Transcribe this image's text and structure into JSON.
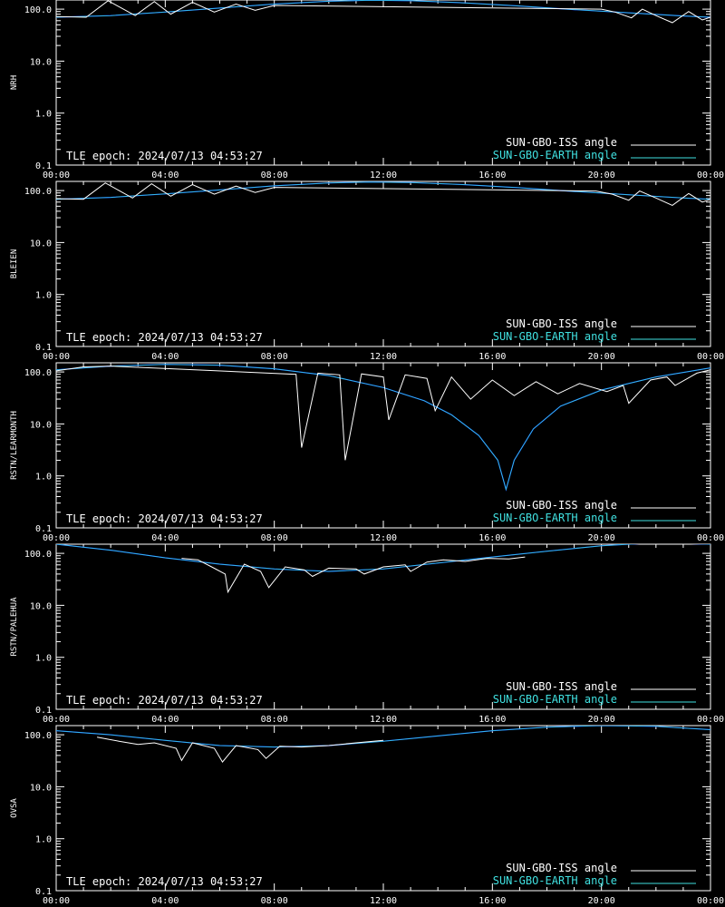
{
  "page": {
    "background": "#000000",
    "foreground": "#ffffff"
  },
  "colors": {
    "iss": "#ffffff",
    "iss_shadow": "#808080",
    "earth": "#40e0e0",
    "earth_model": "#0000ff"
  },
  "legend": {
    "iss_label": "SUN-GBO-ISS angle",
    "earth_label": "SUN-GBO-EARTH angle",
    "epoch_text": "TLE epoch: 2024/07/13 04:53:27"
  },
  "chart_data": [
    {
      "type": "line",
      "station": "NRH",
      "ylabel": "NRH",
      "yscale": "log",
      "ylim": [
        0.1,
        150
      ],
      "yticks": [
        "100.0",
        "10.0",
        "1.0",
        "0.1"
      ],
      "xlim": [
        0,
        24
      ],
      "xticks": [
        "00:00",
        "04:00",
        "08:00",
        "12:00",
        "16:00",
        "20:00",
        "00:00"
      ],
      "earth": {
        "x": [
          0,
          2,
          4,
          6,
          8,
          10,
          11.5,
          13,
          15,
          17,
          19,
          21,
          23,
          24
        ],
        "y": [
          70,
          75,
          88,
          105,
          125,
          142,
          148,
          145,
          132,
          115,
          98,
          85,
          74,
          70
        ]
      },
      "iss": {
        "x": [
          0,
          1.1,
          1.9,
          2.9,
          3.6,
          4.2,
          5.0,
          5.8,
          6.6,
          7.3,
          8.0,
          20.0,
          20.5,
          21.1,
          21.5,
          22.0,
          22.6,
          23.2,
          23.7,
          24.0
        ],
        "y": [
          72,
          70,
          145,
          75,
          140,
          80,
          135,
          88,
          125,
          95,
          118,
          100,
          88,
          68,
          100,
          75,
          55,
          90,
          62,
          70
        ]
      }
    },
    {
      "type": "line",
      "station": "BLEIEN",
      "ylabel": "BLEIEN",
      "yscale": "log",
      "ylim": [
        0.1,
        150
      ],
      "yticks": [
        "100.0",
        "10.0",
        "1.0",
        "0.1"
      ],
      "xlim": [
        0,
        24
      ],
      "xticks": [
        "00:00",
        "04:00",
        "08:00",
        "12:00",
        "16:00",
        "20:00",
        "00:00"
      ],
      "earth": {
        "x": [
          0,
          2,
          4,
          6,
          8,
          10,
          11.5,
          13,
          15,
          17,
          19,
          21,
          23,
          24
        ],
        "y": [
          68,
          74,
          86,
          103,
          123,
          140,
          146,
          143,
          130,
          113,
          96,
          83,
          72,
          68
        ]
      },
      "iss": {
        "x": [
          0,
          1.0,
          1.8,
          2.8,
          3.5,
          4.2,
          5.0,
          5.8,
          6.6,
          7.3,
          8.0,
          19.8,
          20.4,
          21.0,
          21.4,
          22.0,
          22.6,
          23.2,
          23.7,
          24.0
        ],
        "y": [
          70,
          68,
          140,
          72,
          135,
          78,
          130,
          85,
          122,
          92,
          115,
          98,
          85,
          65,
          98,
          72,
          52,
          88,
          60,
          68
        ]
      }
    },
    {
      "type": "line",
      "station": "RSTN/LEARMONTH",
      "ylabel": "RSTN/LEARMONTH",
      "yscale": "log",
      "ylim": [
        0.1,
        150
      ],
      "yticks": [
        "100.0",
        "10.0",
        "1.0",
        "0.1"
      ],
      "xlim": [
        0,
        24
      ],
      "xticks": [
        "00:00",
        "04:00",
        "08:00",
        "12:00",
        "16:00",
        "20:00",
        "00:00"
      ],
      "earth": {
        "x": [
          0,
          2,
          4,
          6,
          8,
          10,
          12,
          13.5,
          14.5,
          15.5,
          16.2,
          16.5,
          16.8,
          17.5,
          18.5,
          20,
          22,
          24
        ],
        "y": [
          110,
          130,
          140,
          135,
          115,
          85,
          50,
          28,
          15,
          6,
          2,
          0.55,
          2,
          8,
          22,
          45,
          80,
          120
        ]
      },
      "iss": {
        "x": [
          0,
          1.0,
          2.0,
          8.8,
          9.0,
          9.6,
          10.4,
          10.6,
          11.2,
          12.0,
          12.2,
          12.8,
          13.6,
          13.9,
          14.5,
          15.2,
          16.0,
          16.8,
          17.6,
          18.4,
          19.2,
          20.2,
          20.8,
          21.0,
          21.8,
          22.4,
          22.7,
          23.5,
          24.0
        ],
        "y": [
          105,
          125,
          130,
          90,
          3.5,
          95,
          88,
          2.0,
          92,
          80,
          12,
          88,
          75,
          18,
          80,
          30,
          70,
          35,
          65,
          38,
          60,
          42,
          55,
          25,
          70,
          80,
          55,
          95,
          110
        ]
      }
    },
    {
      "type": "line",
      "station": "RSTN/PALEHUA",
      "ylabel": "RSTN/PALEHUA",
      "yscale": "log",
      "ylim": [
        0.1,
        150
      ],
      "yticks": [
        "100.0",
        "10.0",
        "1.0",
        "0.1"
      ],
      "xlim": [
        0,
        24
      ],
      "xticks": [
        "00:00",
        "04:00",
        "08:00",
        "12:00",
        "16:00",
        "20:00",
        "00:00"
      ],
      "earth": {
        "x": [
          0,
          2,
          4,
          6,
          8,
          10,
          12,
          14,
          16,
          18,
          20,
          22,
          24
        ],
        "y": [
          150,
          115,
          82,
          62,
          50,
          45,
          50,
          65,
          85,
          110,
          140,
          160,
          150
        ]
      },
      "iss": {
        "x": [
          4.6,
          5.2,
          5.7,
          6.2,
          6.3,
          6.9,
          7.5,
          7.8,
          8.4,
          9.1,
          9.4,
          10.0,
          11.0,
          11.3,
          12.0,
          12.8,
          13.0,
          13.6,
          14.2,
          15.0,
          15.8,
          16.6,
          17.2
        ],
        "y": [
          80,
          75,
          55,
          40,
          18,
          62,
          45,
          22,
          55,
          48,
          36,
          52,
          50,
          40,
          55,
          60,
          45,
          68,
          75,
          70,
          80,
          78,
          85
        ]
      }
    },
    {
      "type": "line",
      "station": "OVSA",
      "ylabel": "OVSA",
      "yscale": "log",
      "ylim": [
        0.1,
        150
      ],
      "yticks": [
        "100.0",
        "10.0",
        "1.0",
        "0.1"
      ],
      "xlim": [
        0,
        24
      ],
      "xticks": [
        "00:00",
        "04:00",
        "08:00",
        "12:00",
        "16:00",
        "20:00",
        "00:00"
      ],
      "earth": {
        "x": [
          0,
          2,
          4,
          6,
          8,
          10,
          12,
          14,
          16,
          18,
          20,
          22,
          24
        ],
        "y": [
          120,
          100,
          78,
          62,
          58,
          62,
          75,
          95,
          120,
          140,
          150,
          145,
          125
        ]
      },
      "iss": {
        "x": [
          1.5,
          2.3,
          3.0,
          3.6,
          4.4,
          4.6,
          5.0,
          5.8,
          6.1,
          6.6,
          7.4,
          7.7,
          8.2,
          9.0,
          10.0,
          11.0,
          12.0
        ],
        "y": [
          90,
          75,
          65,
          70,
          55,
          32,
          70,
          55,
          30,
          62,
          52,
          35,
          60,
          58,
          62,
          70,
          78
        ]
      }
    }
  ]
}
